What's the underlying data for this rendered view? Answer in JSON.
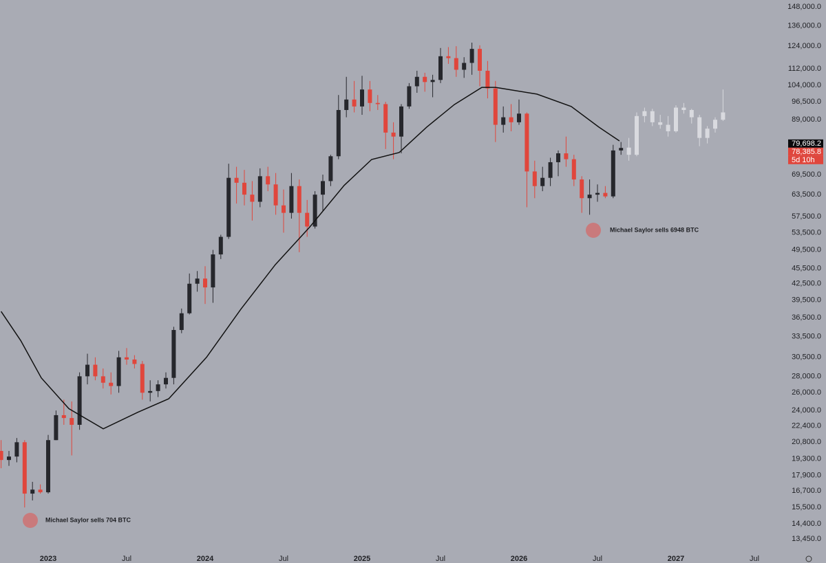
{
  "chart_data": {
    "type": "candlestick",
    "log_scale": true,
    "xlim": [
      2022.693,
      2027.693
    ],
    "ylim": [
      12800,
      152700
    ],
    "xticks": [
      2023,
      {
        "value": 2023.5,
        "label": "Jul"
      },
      2024,
      {
        "value": 2024.5,
        "label": "Jul"
      },
      2025,
      {
        "value": 2025.5,
        "label": "Jul"
      },
      2026,
      {
        "value": 2026.5,
        "label": "Jul"
      },
      2027,
      {
        "value": 2027.5,
        "label": "Jul"
      }
    ],
    "yticks": [
      {
        "value": 148000,
        "label": "148,000.0"
      },
      {
        "value": 136000,
        "label": "136,000.0"
      },
      {
        "value": 124000,
        "label": "124,000.0"
      },
      {
        "value": 112000,
        "label": "112,000.0"
      },
      {
        "value": 104000,
        "label": "104,000.0"
      },
      {
        "value": 96500,
        "label": "96,500.0"
      },
      {
        "value": 89000,
        "label": "89,000.0"
      },
      {
        "value": 69500,
        "label": "69,500.0"
      },
      {
        "value": 63500,
        "label": "63,500.0"
      },
      {
        "value": 57500,
        "label": "57,500.0"
      },
      {
        "value": 53500,
        "label": "53,500.0"
      },
      {
        "value": 49500,
        "label": "49,500.0"
      },
      {
        "value": 45500,
        "label": "45,500.0"
      },
      {
        "value": 42500,
        "label": "42,500.0"
      },
      {
        "value": 39500,
        "label": "39,500.0"
      },
      {
        "value": 36500,
        "label": "36,500.0"
      },
      {
        "value": 33500,
        "label": "33,500.0"
      },
      {
        "value": 30500,
        "label": "30,500.0"
      },
      {
        "value": 28000,
        "label": "28,000.0"
      },
      {
        "value": 26000,
        "label": "26,000.0"
      },
      {
        "value": 24000,
        "label": "24,000.0"
      },
      {
        "value": 22400,
        "label": "22,400.0"
      },
      {
        "value": 20800,
        "label": "20,800.0"
      },
      {
        "value": 19300,
        "label": "19,300.0"
      },
      {
        "value": 17900,
        "label": "17,900.0"
      },
      {
        "value": 16700,
        "label": "16,700.0"
      },
      {
        "value": 15500,
        "label": "15,500.0"
      },
      {
        "value": 14400,
        "label": "14,400.0"
      },
      {
        "value": 13450,
        "label": "13,450.0"
      }
    ],
    "up_color": "#26272c",
    "down_color": "#e0463c",
    "candles": {
      "x": [
        2022.7,
        2022.75,
        2022.8,
        2022.85,
        2022.9,
        2022.95,
        2023.0,
        2023.05,
        2023.1,
        2023.15,
        2023.2,
        2023.25,
        2023.3,
        2023.35,
        2023.4,
        2023.45,
        2023.5,
        2023.55,
        2023.6,
        2023.65,
        2023.7,
        2023.75,
        2023.8,
        2023.85,
        2023.9,
        2023.95,
        2024.0,
        2024.05,
        2024.1,
        2024.15,
        2024.2,
        2024.25,
        2024.3,
        2024.35,
        2024.4,
        2024.45,
        2024.5,
        2024.55,
        2024.6,
        2024.65,
        2024.7,
        2024.75,
        2024.8,
        2024.85,
        2024.9,
        2024.95,
        2025.0,
        2025.05,
        2025.1,
        2025.15,
        2025.2,
        2025.25,
        2025.3,
        2025.35,
        2025.4,
        2025.45,
        2025.5,
        2025.55,
        2025.6,
        2025.65,
        2025.7,
        2025.75,
        2025.8,
        2025.85,
        2025.9,
        2025.95,
        2026.0,
        2026.05,
        2026.1,
        2026.15,
        2026.2,
        2026.25,
        2026.3,
        2026.35,
        2026.4,
        2026.45,
        2026.5,
        2026.55,
        2026.6,
        2026.65
      ],
      "open": [
        20000,
        19200,
        19500,
        20800,
        16500,
        16800,
        16600,
        21000,
        23500,
        23200,
        22500,
        28000,
        29500,
        28000,
        27200,
        26800,
        30500,
        30200,
        29600,
        26000,
        26200,
        27000,
        27800,
        34500,
        37200,
        42500,
        43500,
        41800,
        48500,
        52500,
        68500,
        67000,
        63500,
        61500,
        69000,
        66500,
        60500,
        58500,
        66000,
        58500,
        55000,
        63500,
        67500,
        75500,
        93000,
        97500,
        94500,
        102000,
        96000,
        95500,
        84000,
        82500,
        94500,
        103500,
        108000,
        105500,
        106500,
        118500,
        117500,
        111500,
        115000,
        122500,
        111000,
        102500,
        87000,
        90000,
        88000,
        91500,
        70500,
        66000,
        68500,
        73500,
        76500,
        74500,
        68000,
        62500,
        63500,
        64000,
        63000,
        77500
      ],
      "high": [
        21000,
        20000,
        21200,
        21000,
        17400,
        17200,
        21500,
        24000,
        25200,
        25000,
        28500,
        31000,
        30500,
        29000,
        28500,
        31400,
        31800,
        30800,
        30000,
        27500,
        27500,
        28500,
        35000,
        38000,
        44500,
        45000,
        46000,
        49500,
        53000,
        73000,
        72000,
        71000,
        67500,
        71500,
        72000,
        70000,
        65000,
        70000,
        68000,
        62000,
        64500,
        69500,
        76000,
        99500,
        108000,
        106000,
        108500,
        106000,
        99500,
        96500,
        88000,
        95500,
        105000,
        111000,
        110000,
        109000,
        123000,
        123500,
        124000,
        118000,
        126000,
        124500,
        116000,
        106000,
        94500,
        95500,
        97500,
        92000,
        74000,
        72000,
        75000,
        77500,
        82500,
        76000,
        69000,
        68000,
        66500,
        66000,
        79500,
        80500
      ],
      "low": [
        18500,
        18700,
        19000,
        15500,
        16000,
        16500,
        16500,
        21000,
        22500,
        19600,
        22000,
        27000,
        27500,
        26500,
        25800,
        26000,
        29500,
        29000,
        25200,
        25000,
        25500,
        26500,
        27000,
        34000,
        37000,
        41000,
        38800,
        39000,
        47500,
        52000,
        61000,
        60500,
        56500,
        60000,
        64500,
        58000,
        53500,
        57000,
        49000,
        52500,
        54500,
        59000,
        66000,
        74500,
        90000,
        92000,
        91000,
        92500,
        93000,
        78000,
        74500,
        76500,
        93500,
        100500,
        101000,
        98500,
        105000,
        114500,
        108000,
        107500,
        109000,
        103500,
        98000,
        80500,
        84000,
        84500,
        87000,
        60000,
        62500,
        64500,
        66000,
        69000,
        72000,
        66000,
        58500,
        58000,
        61500,
        62500,
        62500,
        76000
      ],
      "close": [
        19200,
        19500,
        20800,
        16500,
        16800,
        16600,
        21000,
        23500,
        23200,
        22500,
        28000,
        29500,
        28000,
        27200,
        26800,
        30500,
        30200,
        29600,
        26000,
        26200,
        27000,
        27800,
        34500,
        37200,
        42500,
        43500,
        41800,
        48500,
        52500,
        68500,
        67000,
        63500,
        61500,
        69000,
        66500,
        60500,
        58500,
        66000,
        58500,
        55000,
        63500,
        67500,
        75500,
        93000,
        97500,
        94500,
        102000,
        96000,
        95500,
        84000,
        82500,
        94500,
        103500,
        108000,
        105500,
        106500,
        118500,
        117500,
        111500,
        115000,
        122500,
        111000,
        102500,
        87000,
        90000,
        88000,
        91500,
        70500,
        66000,
        68500,
        73500,
        76500,
        74500,
        68000,
        62500,
        63500,
        64000,
        63000,
        77500,
        78385.8
      ]
    },
    "projection": {
      "color": "#d9dadf",
      "x": [
        2026.7,
        2026.75,
        2026.8,
        2026.85,
        2026.9,
        2026.95,
        2027.0,
        2027.05,
        2027.1,
        2027.15,
        2027.2,
        2027.25,
        2027.3
      ],
      "open": [
        78500,
        76000,
        90500,
        92500,
        88000,
        87000,
        84500,
        94000,
        93000,
        90000,
        82000,
        85500,
        89000
      ],
      "high": [
        82000,
        92000,
        94000,
        93500,
        91000,
        90500,
        95000,
        96000,
        93500,
        91000,
        86500,
        90000,
        102000
      ],
      "low": [
        74000,
        75500,
        88000,
        86500,
        85500,
        82500,
        84000,
        91500,
        87500,
        79000,
        80000,
        84000,
        88500
      ],
      "close": [
        76000,
        90500,
        92500,
        88000,
        87000,
        84500,
        94000,
        93000,
        90000,
        82000,
        85500,
        89000,
        92000
      ]
    },
    "moving_average": {
      "color": "#111111",
      "x": [
        2022.7,
        2022.825,
        2022.956,
        2023.132,
        2023.351,
        2023.57,
        2023.768,
        2024.009,
        2024.228,
        2024.447,
        2024.667,
        2024.886,
        2025.061,
        2025.237,
        2025.412,
        2025.588,
        2025.763,
        2025.851,
        2026.114,
        2026.333,
        2026.509,
        2026.64
      ],
      "values": [
        37500,
        32900,
        27800,
        24200,
        22100,
        23800,
        25300,
        30500,
        37900,
        46300,
        54900,
        66200,
        74400,
        76800,
        86100,
        95300,
        103000,
        103000,
        99900,
        94500,
        86100,
        80900
      ]
    },
    "price_tags": [
      {
        "value": 79698.2,
        "label": "79,698.2",
        "color": "#0b0b0d"
      },
      {
        "value": 78385.8,
        "label": "78,385.8",
        "color": "#e0463c"
      }
    ],
    "countdown": "5d 10h",
    "annotations": [
      "Michael Saylor sells 704 BTC",
      "Michael Saylor sells 6948 BTC"
    ]
  }
}
